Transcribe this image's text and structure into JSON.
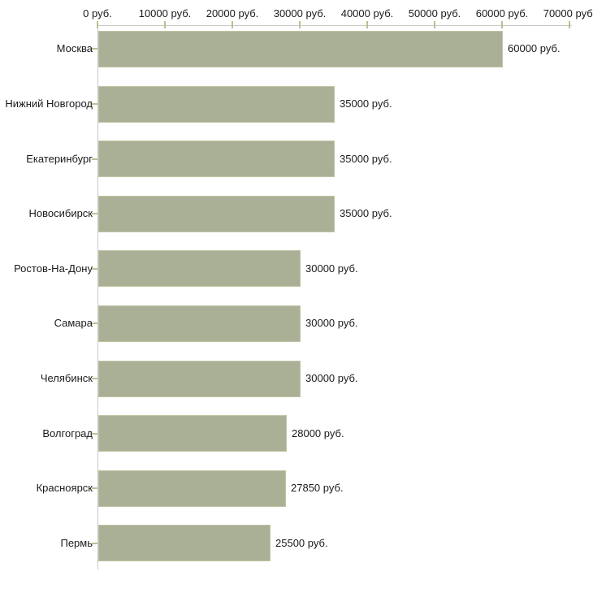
{
  "chart_data": {
    "type": "bar",
    "orientation": "horizontal",
    "title": "",
    "unit_suffix": " руб.",
    "categories": [
      "Москва",
      "Нижний Новгород",
      "Екатеринбург",
      "Новосибирск",
      "Ростов-На-Дону",
      "Самара",
      "Челябинск",
      "Волгоград",
      "Красноярск",
      "Пермь"
    ],
    "values": [
      60000,
      35000,
      35000,
      35000,
      30000,
      30000,
      30000,
      28000,
      27850,
      25500
    ],
    "value_labels": [
      "60000 руб.",
      "35000 руб.",
      "35000 руб.",
      "35000 руб.",
      "30000 руб.",
      "30000 руб.",
      "30000 руб.",
      "28000 руб.",
      "27850 руб.",
      "25500 руб."
    ],
    "x_axis": {
      "position": "top",
      "min": 0,
      "max": 70000,
      "ticks": [
        0,
        10000,
        20000,
        30000,
        40000,
        50000,
        60000,
        70000
      ],
      "tick_labels": [
        "0 руб.",
        "10000 руб.",
        "20000 руб.",
        "30000 руб.",
        "40000 руб.",
        "50000 руб.",
        "60000 руб.",
        "70000 руб."
      ]
    },
    "grid": false,
    "legend": false,
    "colors": {
      "bar_fill": "#aab095",
      "bar_border": "#bfc4a3",
      "axis_line": "#c8c8c8",
      "tick_mark": "#bdbf98",
      "label_text": "#1a1a1a",
      "background": "#ffffff"
    }
  }
}
